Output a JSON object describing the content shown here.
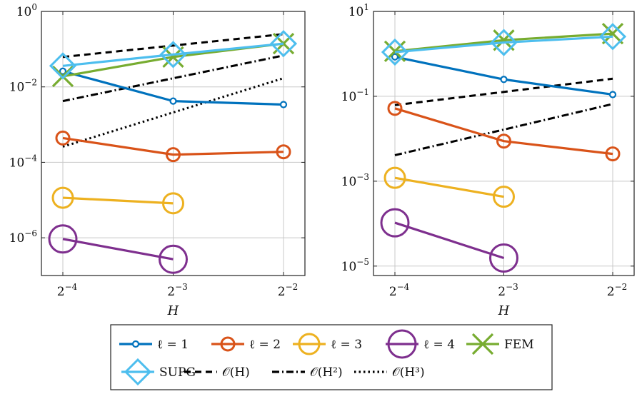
{
  "chart_data": [
    {
      "type": "line",
      "xlabel": "H",
      "x_ticks": [
        {
          "base": "2",
          "exp": "−4",
          "value": 0.0625
        },
        {
          "base": "2",
          "exp": "−3",
          "value": 0.125
        },
        {
          "base": "2",
          "exp": "−2",
          "value": 0.25
        }
      ],
      "y_scale": "log",
      "ylim": [
        1e-07,
        1
      ],
      "y_ticks": [
        {
          "base": "10",
          "exp": "0",
          "value": 1
        },
        {
          "base": "10",
          "exp": "−2",
          "value": 0.01
        },
        {
          "base": "10",
          "exp": "−4",
          "value": 0.0001
        },
        {
          "base": "10",
          "exp": "−6",
          "value": 1e-06
        }
      ],
      "grid": true,
      "series": [
        {
          "name": "ℓ = 1",
          "key": "l1",
          "x": [
            0.0625,
            0.125,
            0.25
          ],
          "y": [
            0.026,
            0.0042,
            0.0034
          ]
        },
        {
          "name": "ℓ = 2",
          "key": "l2",
          "x": [
            0.0625,
            0.125,
            0.25
          ],
          "y": [
            0.00044,
            0.00016,
            0.00019
          ]
        },
        {
          "name": "ℓ = 3",
          "key": "l3",
          "x": [
            0.0625,
            0.125
          ],
          "y": [
            1.15e-05,
            8.2e-06
          ]
        },
        {
          "name": "ℓ = 4",
          "key": "l4",
          "x": [
            0.0625,
            0.125
          ],
          "y": [
            9.3e-07,
            2.7e-07
          ]
        },
        {
          "name": "FEM",
          "key": "fem",
          "x": [
            0.0625,
            0.125,
            0.25
          ],
          "y": [
            0.019,
            0.062,
            0.14
          ]
        },
        {
          "name": "SUPG",
          "key": "supg",
          "x": [
            0.0625,
            0.125,
            0.25
          ],
          "y": [
            0.036,
            0.072,
            0.14
          ]
        },
        {
          "name": "𝒪(H)",
          "key": "oh",
          "x": [
            0.0625,
            0.25
          ],
          "y": [
            0.062,
            0.25
          ]
        },
        {
          "name": "𝒪(H²)",
          "key": "oh2",
          "x": [
            0.0625,
            0.25
          ],
          "y": [
            0.0042,
            0.068
          ]
        },
        {
          "name": "𝒪(H³)",
          "key": "oh3",
          "x": [
            0.0625,
            0.25
          ],
          "y": [
            0.00026,
            0.017
          ]
        }
      ]
    },
    {
      "type": "line",
      "xlabel": "H",
      "x_ticks": [
        {
          "base": "2",
          "exp": "−4",
          "value": 0.0625
        },
        {
          "base": "2",
          "exp": "−3",
          "value": 0.125
        },
        {
          "base": "2",
          "exp": "−2",
          "value": 0.25
        }
      ],
      "y_scale": "log",
      "ylim": [
        6e-06,
        10
      ],
      "y_ticks": [
        {
          "base": "10",
          "exp": "1",
          "value": 10
        },
        {
          "base": "10",
          "exp": "−1",
          "value": 0.1
        },
        {
          "base": "10",
          "exp": "−3",
          "value": 0.001
        },
        {
          "base": "10",
          "exp": "−5",
          "value": 1e-05
        }
      ],
      "grid": true,
      "series": [
        {
          "name": "ℓ = 1",
          "key": "l1",
          "x": [
            0.0625,
            0.125,
            0.25
          ],
          "y": [
            0.85,
            0.25,
            0.11
          ]
        },
        {
          "name": "ℓ = 2",
          "key": "l2",
          "x": [
            0.0625,
            0.125,
            0.25
          ],
          "y": [
            0.052,
            0.0088,
            0.0044
          ]
        },
        {
          "name": "ℓ = 3",
          "key": "l3",
          "x": [
            0.0625,
            0.125
          ],
          "y": [
            0.0012,
            0.00043
          ]
        },
        {
          "name": "ℓ = 4",
          "key": "l4",
          "x": [
            0.0625,
            0.125
          ],
          "y": [
            0.000105,
            1.55e-05
          ]
        },
        {
          "name": "FEM",
          "key": "fem",
          "x": [
            0.0625,
            0.125,
            0.25
          ],
          "y": [
            1.15,
            2.1,
            3.0
          ]
        },
        {
          "name": "SUPG",
          "key": "supg",
          "x": [
            0.0625,
            0.125,
            0.25
          ],
          "y": [
            1.1,
            1.85,
            2.55
          ]
        },
        {
          "name": "𝒪(H)",
          "key": "oh",
          "x": [
            0.0625,
            0.25
          ],
          "y": [
            0.062,
            0.26
          ]
        },
        {
          "name": "𝒪(H²)",
          "key": "oh2",
          "x": [
            0.0625,
            0.25
          ],
          "y": [
            0.0041,
            0.066
          ]
        }
      ]
    }
  ],
  "legend": {
    "placement": "bottom-center",
    "items": [
      {
        "key": "l1",
        "label": "ℓ = 1"
      },
      {
        "key": "l2",
        "label": "ℓ = 2"
      },
      {
        "key": "l3",
        "label": "ℓ = 3"
      },
      {
        "key": "l4",
        "label": "ℓ = 4"
      },
      {
        "key": "fem",
        "label": "FEM"
      },
      {
        "key": "supg",
        "label": "SUPG"
      },
      {
        "key": "oh",
        "label": "𝒪(H)"
      },
      {
        "key": "oh2",
        "label": "𝒪(H²)"
      },
      {
        "key": "oh3",
        "label": "𝒪(H³)"
      }
    ]
  },
  "styles": {
    "l1": {
      "color": "#0072BD",
      "dash": "",
      "marker": "circle",
      "marker_size": "small"
    },
    "l2": {
      "color": "#D95319",
      "dash": "",
      "marker": "circle",
      "marker_size": "medium"
    },
    "l3": {
      "color": "#EDB120",
      "dash": "",
      "marker": "circle",
      "marker_size": "large"
    },
    "l4": {
      "color": "#7E2F8E",
      "dash": "",
      "marker": "circle",
      "marker_size": "xlarge"
    },
    "fem": {
      "color": "#77AC30",
      "dash": "",
      "marker": "x",
      "marker_size": "large"
    },
    "supg": {
      "color": "#4DBEEE",
      "dash": "",
      "marker": "diamond",
      "marker_size": "large"
    },
    "oh": {
      "color": "#000000",
      "dash": "dashed",
      "marker": "none"
    },
    "oh2": {
      "color": "#000000",
      "dash": "dashdot",
      "marker": "none"
    },
    "oh3": {
      "color": "#000000",
      "dash": "dotted",
      "marker": "none"
    }
  }
}
